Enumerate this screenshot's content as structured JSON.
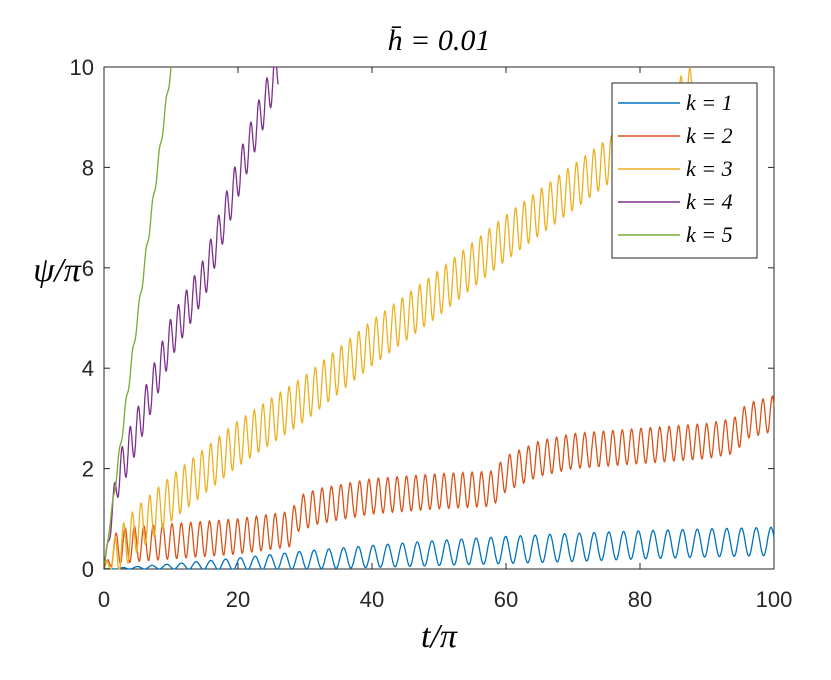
{
  "chart_data": {
    "type": "line",
    "title": "h̄ = 0.01",
    "xlabel": "t/π",
    "ylabel": "ψ/π",
    "xlim": [
      0,
      100
    ],
    "ylim": [
      0,
      10
    ],
    "xticks": [
      "0",
      "20",
      "40",
      "60",
      "80",
      "100"
    ],
    "yticks": [
      "0",
      "2",
      "4",
      "6",
      "8",
      "10"
    ],
    "grid": false,
    "legend_position": "top-right",
    "series": [
      {
        "name": "k = 1",
        "color": "#0072BD",
        "x": [
          0,
          10,
          20,
          30,
          40,
          50,
          60,
          70,
          80,
          90,
          100
        ],
        "y": [
          0.0,
          0.05,
          0.1,
          0.18,
          0.25,
          0.32,
          0.38,
          0.43,
          0.48,
          0.52,
          0.55
        ],
        "oscillation_amplitude": [
          0.0,
          0.05,
          0.12,
          0.18,
          0.22,
          0.25,
          0.27,
          0.28,
          0.28,
          0.28,
          0.28
        ],
        "oscillation_period": 2.2
      },
      {
        "name": "k = 2",
        "color": "#D95319",
        "x": [
          0,
          2,
          5,
          10,
          20,
          28,
          29,
          32,
          40,
          50,
          58,
          60,
          65,
          70,
          80,
          90,
          94,
          96,
          100
        ],
        "y": [
          0.0,
          0.45,
          0.5,
          0.55,
          0.65,
          0.8,
          1.1,
          1.25,
          1.45,
          1.55,
          1.6,
          1.9,
          2.2,
          2.35,
          2.45,
          2.55,
          2.65,
          2.95,
          3.1
        ],
        "oscillation_amplitude": 0.35,
        "oscillation_period": 1.4
      },
      {
        "name": "k = 3",
        "color": "#EDB120",
        "x": [
          0,
          5,
          10,
          20,
          30,
          40,
          50,
          60,
          70,
          80,
          88
        ],
        "y": [
          0.0,
          0.8,
          1.4,
          2.5,
          3.4,
          4.5,
          5.5,
          6.6,
          7.6,
          8.6,
          9.6
        ],
        "oscillation_amplitude": 0.45,
        "oscillation_period": 1.3
      },
      {
        "name": "k = 4",
        "color": "#7E2F8E",
        "x": [
          0,
          2,
          5,
          10,
          15,
          20,
          26
        ],
        "y": [
          0.0,
          1.8,
          2.8,
          4.6,
          5.8,
          7.8,
          10.0
        ],
        "oscillation_amplitude": 0.4,
        "oscillation_period": 1.2
      },
      {
        "name": "k = 5",
        "color": "#77AC30",
        "x": [
          0,
          1,
          3,
          5,
          7,
          10
        ],
        "y": [
          0.0,
          1.0,
          3.0,
          5.0,
          7.0,
          10.0
        ],
        "oscillation_amplitude": 0.1,
        "oscillation_period": 1.0
      }
    ]
  }
}
